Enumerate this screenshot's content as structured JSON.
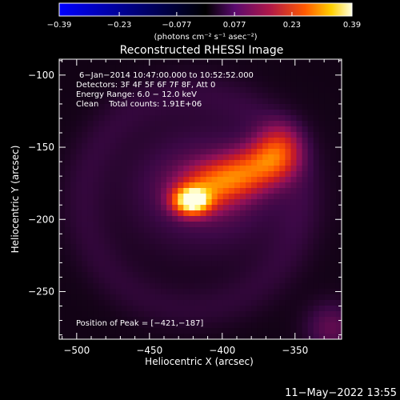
{
  "chart_data": {
    "type": "heatmap",
    "title": "Reconstructed RHESSI Image",
    "xlabel": "Heliocentric X (arcsec)",
    "ylabel": "Heliocentric Y (arcsec)",
    "xlim": [
      -512,
      -318
    ],
    "ylim": [
      -283,
      -89
    ],
    "x_ticks": [
      -500,
      -450,
      -400,
      -350
    ],
    "y_ticks": [
      -100,
      -150,
      -200,
      -250
    ],
    "x_tick_labels": [
      "−500",
      "−450",
      "−400",
      "−350"
    ],
    "y_tick_labels": [
      "−100",
      "−150",
      "−200",
      "−250"
    ],
    "colorbar": {
      "range": [
        -0.39,
        0.39
      ],
      "tick_values": [
        -0.39,
        -0.23,
        -0.077,
        0.077,
        0.23,
        0.39
      ],
      "tick_labels": [
        "−0.39",
        "−0.23",
        "−0.077",
        "0.077",
        "0.23",
        "0.39"
      ],
      "units_text": "(photons cm⁻² s⁻¹ asec⁻²)"
    },
    "annotations": [
      "6−Jan−2014 10:47:00.000 to 10:52:52.000",
      "Detectors: 3F 4F 5F 6F 7F 8F, Att 0",
      "Energy Range: 6.0 − 12.0 keV",
      "Clean    Total counts: 1.91E+06"
    ],
    "peak_label": "Position of Peak = [−421,−187]",
    "peak": [
      -421,
      -187
    ],
    "timestamp": "11−May−2022 13:55",
    "sources": [
      {
        "x": -421,
        "y": -187,
        "sx": 8,
        "sy": 6,
        "amp": 0.39
      },
      {
        "x": -412,
        "y": -180,
        "sx": 14,
        "sy": 10,
        "amp": 0.12
      },
      {
        "x": -400,
        "y": -172,
        "sx": 13,
        "sy": 9,
        "amp": 0.09
      },
      {
        "x": -385,
        "y": -168,
        "sx": 12,
        "sy": 10,
        "amp": 0.12
      },
      {
        "x": -368,
        "y": -160,
        "sx": 11,
        "sy": 10,
        "amp": 0.14
      },
      {
        "x": -360,
        "y": -150,
        "sx": 10,
        "sy": 11,
        "amp": 0.1
      },
      {
        "x": -410,
        "y": -178,
        "sx": 38,
        "sy": 30,
        "amp": 0.05
      },
      {
        "x": -325,
        "y": -275,
        "sx": 12,
        "sy": 12,
        "amp": 0.05
      }
    ]
  }
}
